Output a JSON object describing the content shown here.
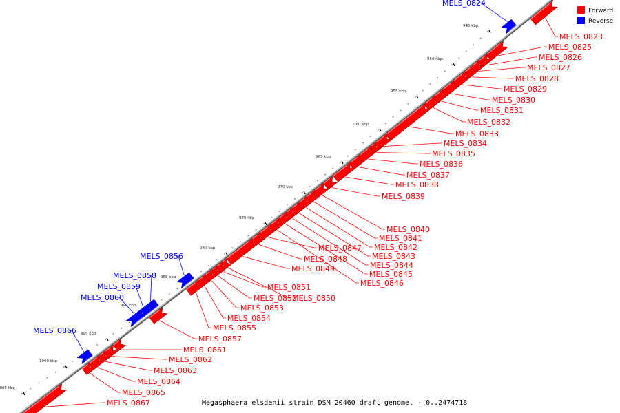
{
  "caption": "Megasphaera elsdenii strain DSM 20460 draft genome. - 0..2474718",
  "legend": [
    {
      "name": "Forward",
      "color": "#ff0000"
    },
    {
      "name": "Reverse",
      "color": "#0000ff"
    }
  ],
  "colors": {
    "forward": "#ff0000",
    "reverse": "#0000ff",
    "backbone": "#808080",
    "leader": "#ff0000"
  },
  "ticks": [
    {
      "label": "945 kbp",
      "kbp": 945
    },
    {
      "label": "950 kbp",
      "kbp": 950
    },
    {
      "label": "955 kbp",
      "kbp": 955
    },
    {
      "label": "960 kbp",
      "kbp": 960
    },
    {
      "label": "965 kbp",
      "kbp": 965
    },
    {
      "label": "970 kbp",
      "kbp": 970
    },
    {
      "label": "975 kbp",
      "kbp": 975
    },
    {
      "label": "980 kbp",
      "kbp": 980
    },
    {
      "label": "985 kbp",
      "kbp": 985
    },
    {
      "label": "990 kbp",
      "kbp": 990
    },
    {
      "label": "995 kbp",
      "kbp": 995
    },
    {
      "label": "1000 kbp",
      "kbp": 1000
    },
    {
      "label": "1005 kbp",
      "kbp": 1005
    }
  ],
  "features": [
    {
      "name": "MELS_0823",
      "strand": "forward"
    },
    {
      "name": "MELS_0824",
      "strand": "reverse"
    },
    {
      "name": "MELS_0825",
      "strand": "forward"
    },
    {
      "name": "MELS_0826",
      "strand": "forward"
    },
    {
      "name": "MELS_0827",
      "strand": "forward"
    },
    {
      "name": "MELS_0828",
      "strand": "forward"
    },
    {
      "name": "MELS_0829",
      "strand": "forward"
    },
    {
      "name": "MELS_0830",
      "strand": "forward"
    },
    {
      "name": "MELS_0831",
      "strand": "forward"
    },
    {
      "name": "MELS_0832",
      "strand": "forward"
    },
    {
      "name": "MELS_0833",
      "strand": "forward"
    },
    {
      "name": "MELS_0834",
      "strand": "forward"
    },
    {
      "name": "MELS_0835",
      "strand": "forward"
    },
    {
      "name": "MELS_0836",
      "strand": "forward"
    },
    {
      "name": "MELS_0837",
      "strand": "forward"
    },
    {
      "name": "MELS_0838",
      "strand": "forward"
    },
    {
      "name": "MELS_0839",
      "strand": "forward"
    },
    {
      "name": "MELS_0840",
      "strand": "forward"
    },
    {
      "name": "MELS_0841",
      "strand": "forward"
    },
    {
      "name": "MELS_0842",
      "strand": "forward"
    },
    {
      "name": "MELS_0843",
      "strand": "forward"
    },
    {
      "name": "MELS_0844",
      "strand": "forward"
    },
    {
      "name": "MELS_0845",
      "strand": "forward"
    },
    {
      "name": "MELS_0846",
      "strand": "forward"
    },
    {
      "name": "MELS_0847",
      "strand": "forward"
    },
    {
      "name": "MELS_0848",
      "strand": "forward"
    },
    {
      "name": "MELS_0849",
      "strand": "forward"
    },
    {
      "name": "MELS_0850",
      "strand": "forward"
    },
    {
      "name": "MELS_0851",
      "strand": "forward"
    },
    {
      "name": "MELS_0852",
      "strand": "forward"
    },
    {
      "name": "MELS_0853",
      "strand": "forward"
    },
    {
      "name": "MELS_0854",
      "strand": "forward"
    },
    {
      "name": "MELS_0855",
      "strand": "forward"
    },
    {
      "name": "MELS_0856",
      "strand": "reverse"
    },
    {
      "name": "MELS_0857",
      "strand": "forward"
    },
    {
      "name": "MELS_0858",
      "strand": "reverse"
    },
    {
      "name": "MELS_0859",
      "strand": "reverse"
    },
    {
      "name": "MELS_0860",
      "strand": "reverse"
    },
    {
      "name": "MELS_0861",
      "strand": "forward"
    },
    {
      "name": "MELS_0862",
      "strand": "forward"
    },
    {
      "name": "MELS_0863",
      "strand": "forward"
    },
    {
      "name": "MELS_0864",
      "strand": "forward"
    },
    {
      "name": "MELS_0865",
      "strand": "forward"
    },
    {
      "name": "MELS_0866",
      "strand": "reverse"
    },
    {
      "name": "MELS_0867",
      "strand": "forward"
    }
  ]
}
